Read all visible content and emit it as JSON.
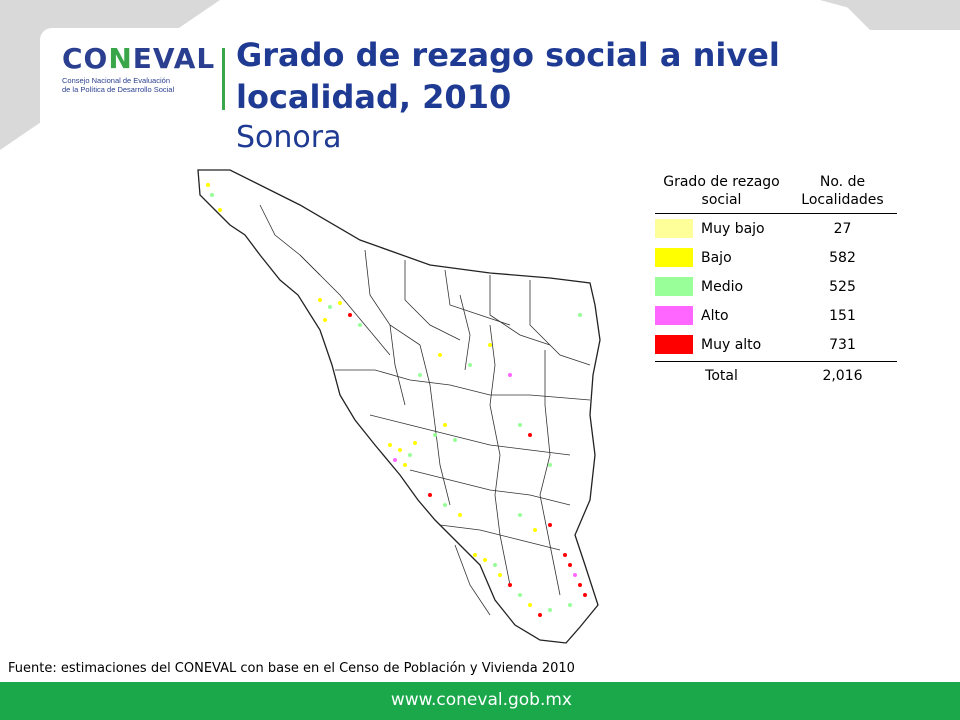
{
  "header": {
    "logo_wordmark_a": "CO",
    "logo_wordmark_b": "N",
    "logo_wordmark_c": "EVAL",
    "logo_subtitle_1": "Consejo Nacional de Evaluación",
    "logo_subtitle_2": "de la Política de Desarrollo Social",
    "title": "Grado de rezago social a nivel localidad, 2010",
    "subtitle": "Sonora"
  },
  "legend": {
    "col1_header": "Grado de rezago social",
    "col2_header": "No. de Localidades",
    "rows": [
      {
        "label": "Muy bajo",
        "value": "27",
        "color": "#ffff99"
      },
      {
        "label": "Bajo",
        "value": "582",
        "color": "#ffff00"
      },
      {
        "label": "Medio",
        "value": "525",
        "color": "#99ff99"
      },
      {
        "label": "Alto",
        "value": "151",
        "color": "#ff66ff"
      },
      {
        "label": "Muy alto",
        "value": "731",
        "color": "#ff0000"
      }
    ],
    "total_label": "Total",
    "total_value": "2,016"
  },
  "source": "Fuente: estimaciones del CONEVAL con base en el Censo de Población y Vivienda 2010",
  "footer_url": "www.coneval.gob.mx",
  "colors": {
    "brand_blue": "#1f3a93",
    "brand_green": "#1aa84b"
  }
}
